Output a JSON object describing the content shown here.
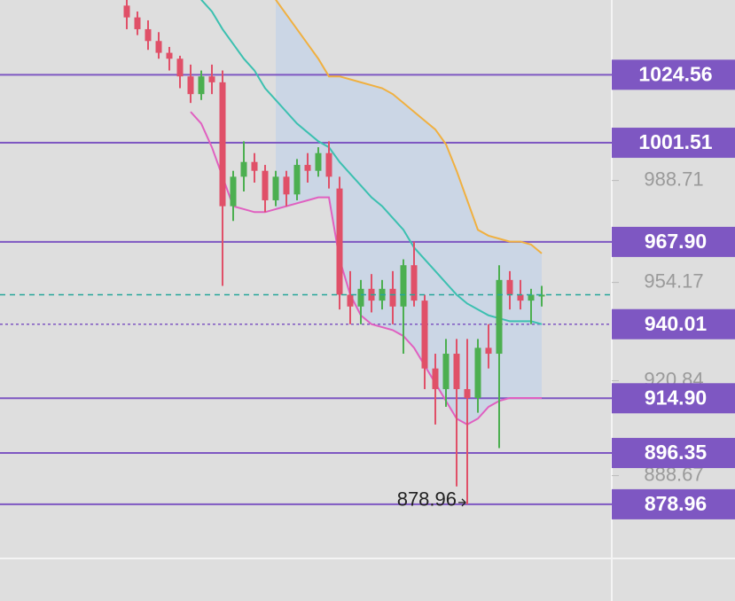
{
  "chart_data": {
    "type": "candlestick",
    "open": [
      1048,
      1044,
      1040,
      1036,
      1032,
      1030,
      1024,
      1018,
      1024,
      1022,
      980,
      990,
      995,
      992,
      982,
      990,
      984,
      994,
      992,
      998,
      986,
      950,
      946,
      952,
      948,
      952,
      946,
      960,
      948,
      925,
      918,
      930,
      918,
      915,
      932,
      930,
      955,
      950,
      948,
      950
    ],
    "high": [
      1050,
      1046,
      1043,
      1039,
      1034,
      1031,
      1028,
      1026,
      1028,
      1026,
      992,
      1002,
      998,
      994,
      992,
      992,
      996,
      998,
      1000,
      1002,
      990,
      958,
      955,
      957,
      955,
      958,
      962,
      968,
      950,
      930,
      935,
      935,
      935,
      935,
      940,
      960,
      958,
      955,
      952,
      953
    ],
    "low": [
      1040,
      1038,
      1033,
      1030,
      1026,
      1020,
      1015,
      1016,
      1018,
      953,
      975,
      985,
      988,
      978,
      980,
      980,
      982,
      988,
      990,
      986,
      945,
      940,
      940,
      944,
      945,
      940,
      930,
      946,
      918,
      906,
      912,
      885,
      878.96,
      910,
      925,
      898,
      945,
      945,
      940,
      946
    ],
    "close": [
      1044,
      1040,
      1036,
      1032,
      1030,
      1024,
      1018,
      1024,
      1022,
      980,
      990,
      995,
      992,
      982,
      990,
      984,
      994,
      992,
      998,
      990,
      950,
      946,
      952,
      948,
      952,
      946,
      960,
      948,
      925,
      918,
      930,
      918,
      915,
      932,
      930,
      955,
      950,
      948,
      950,
      950
    ],
    "up_color": "#4caf50",
    "down_color": "#e05068",
    "bands": [
      {
        "color": "#f0b040",
        "values": [
          null,
          null,
          null,
          null,
          null,
          null,
          null,
          null,
          null,
          null,
          null,
          null,
          null,
          null,
          1050,
          1045,
          1040,
          1035,
          1030,
          1024,
          1024,
          1023,
          1022,
          1021,
          1020,
          1018,
          1015,
          1012,
          1009,
          1006,
          1001,
          992,
          982,
          972,
          970,
          969,
          968,
          968,
          967,
          964
        ]
      },
      {
        "color": "#3cc0b0",
        "values": [
          null,
          null,
          null,
          null,
          null,
          null,
          null,
          1050,
          1046,
          1040,
          1035,
          1030,
          1026,
          1020,
          1016,
          1012,
          1008,
          1005,
          1002,
          1000,
          995,
          991,
          987,
          983,
          980,
          976,
          972,
          966,
          962,
          958,
          954,
          950,
          947,
          945,
          943,
          942,
          941,
          941,
          941,
          940
        ]
      },
      {
        "color": "#e060c0",
        "values": [
          null,
          null,
          null,
          null,
          null,
          null,
          1012,
          1008,
          1000,
          990,
          980,
          979,
          978,
          978,
          979,
          980,
          981,
          982,
          983,
          983,
          962,
          950,
          943,
          940,
          939,
          938,
          936,
          932,
          926,
          920,
          914,
          908,
          906,
          908,
          912,
          914,
          915,
          915,
          915,
          915
        ]
      }
    ],
    "band_fill": "#c9d5e6",
    "ylim": [
      860.6,
      1049.9
    ],
    "yticks": [
      988.71,
      954.17,
      920.84,
      888.67
    ],
    "levels": [
      {
        "value": 1024.56,
        "label": "1024.56",
        "style": "solid"
      },
      {
        "value": 1001.51,
        "label": "1001.51",
        "style": "solid"
      },
      {
        "value": 967.9,
        "label": "967.90",
        "style": "solid"
      },
      {
        "value": 940.01,
        "label": "940.01",
        "style": "dotted"
      },
      {
        "value": 914.9,
        "label": "914.90",
        "style": "solid"
      },
      {
        "value": 896.35,
        "label": "896.35",
        "style": "solid"
      },
      {
        "value": 878.96,
        "label": "878.96",
        "style": "solid"
      }
    ],
    "level_color": "#7e57c2",
    "last_price_color": "#26a69a",
    "low_annotation": "878.96"
  }
}
